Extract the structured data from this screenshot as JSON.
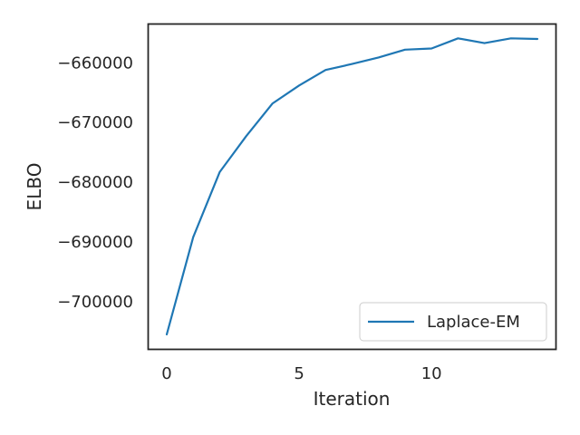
{
  "chart_data": {
    "type": "line",
    "title": "",
    "xlabel": "Iteration",
    "ylabel": "ELBO",
    "xlim": [
      -0.7,
      14.7
    ],
    "ylim": [
      -708000,
      -653500
    ],
    "xticks": [
      0,
      5,
      10
    ],
    "xtick_labels": [
      "0",
      "5",
      "10"
    ],
    "yticks": [
      -700000,
      -690000,
      -680000,
      -670000,
      -660000
    ],
    "ytick_labels": [
      "−700000",
      "−690000",
      "−680000",
      "−670000",
      "−660000"
    ],
    "grid": false,
    "legend_position": "lower right",
    "series": [
      {
        "name": "Laplace-EM",
        "color": "#1f77b4",
        "x": [
          0,
          1,
          2,
          3,
          4,
          5,
          6,
          7,
          8,
          9,
          10,
          11,
          12,
          13,
          14
        ],
        "y": [
          -705500,
          -689200,
          -678300,
          -672300,
          -666800,
          -663800,
          -661200,
          -660200,
          -659100,
          -657800,
          -657600,
          -655900,
          -656700,
          -655900,
          -656000
        ]
      }
    ]
  }
}
